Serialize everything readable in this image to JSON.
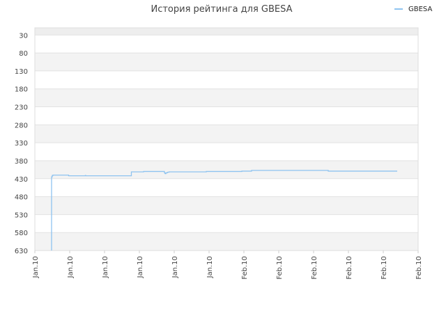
{
  "chart_data": {
    "type": "line",
    "title": "История рейтинга для GBESA",
    "legend": {
      "position": "top-right",
      "entries": [
        "GBESA"
      ]
    },
    "y_axis": {
      "inverted": true,
      "range": [
        10,
        630
      ],
      "ticks": [
        30,
        80,
        130,
        180,
        230,
        280,
        330,
        380,
        430,
        480,
        530,
        580,
        630
      ],
      "grid": true,
      "banded": true
    },
    "x_axis": {
      "ticks": [
        "Jan.10",
        "Jan.10",
        "Jan.10",
        "Jan.10",
        "Jan.10",
        "Jan.10",
        "Feb.10",
        "Feb.10",
        "Feb.10",
        "Feb.10",
        "Feb.10",
        "Feb.10"
      ],
      "range": [
        0,
        11
      ]
    },
    "series": [
      {
        "name": "GBESA",
        "color": "#8ec3f0",
        "x": [
          0.48,
          0.48,
          0.5,
          0.52,
          0.96,
          0.97,
          1.44,
          1.45,
          1.46,
          2.76,
          2.77,
          2.79,
          3.1,
          3.12,
          3.7,
          3.72,
          3.74,
          3.76,
          3.8,
          3.85,
          4.9,
          4.92,
          5.92,
          5.94,
          6.2,
          6.22,
          8.4,
          8.42,
          10.4
        ],
        "y": [
          630,
          425,
          421,
          420,
          420,
          422,
          422,
          421,
          422,
          422,
          411,
          411,
          411,
          410,
          410,
          414,
          416,
          414,
          412,
          411,
          411,
          410,
          410,
          409,
          409,
          407,
          407,
          409,
          409
        ]
      }
    ]
  }
}
